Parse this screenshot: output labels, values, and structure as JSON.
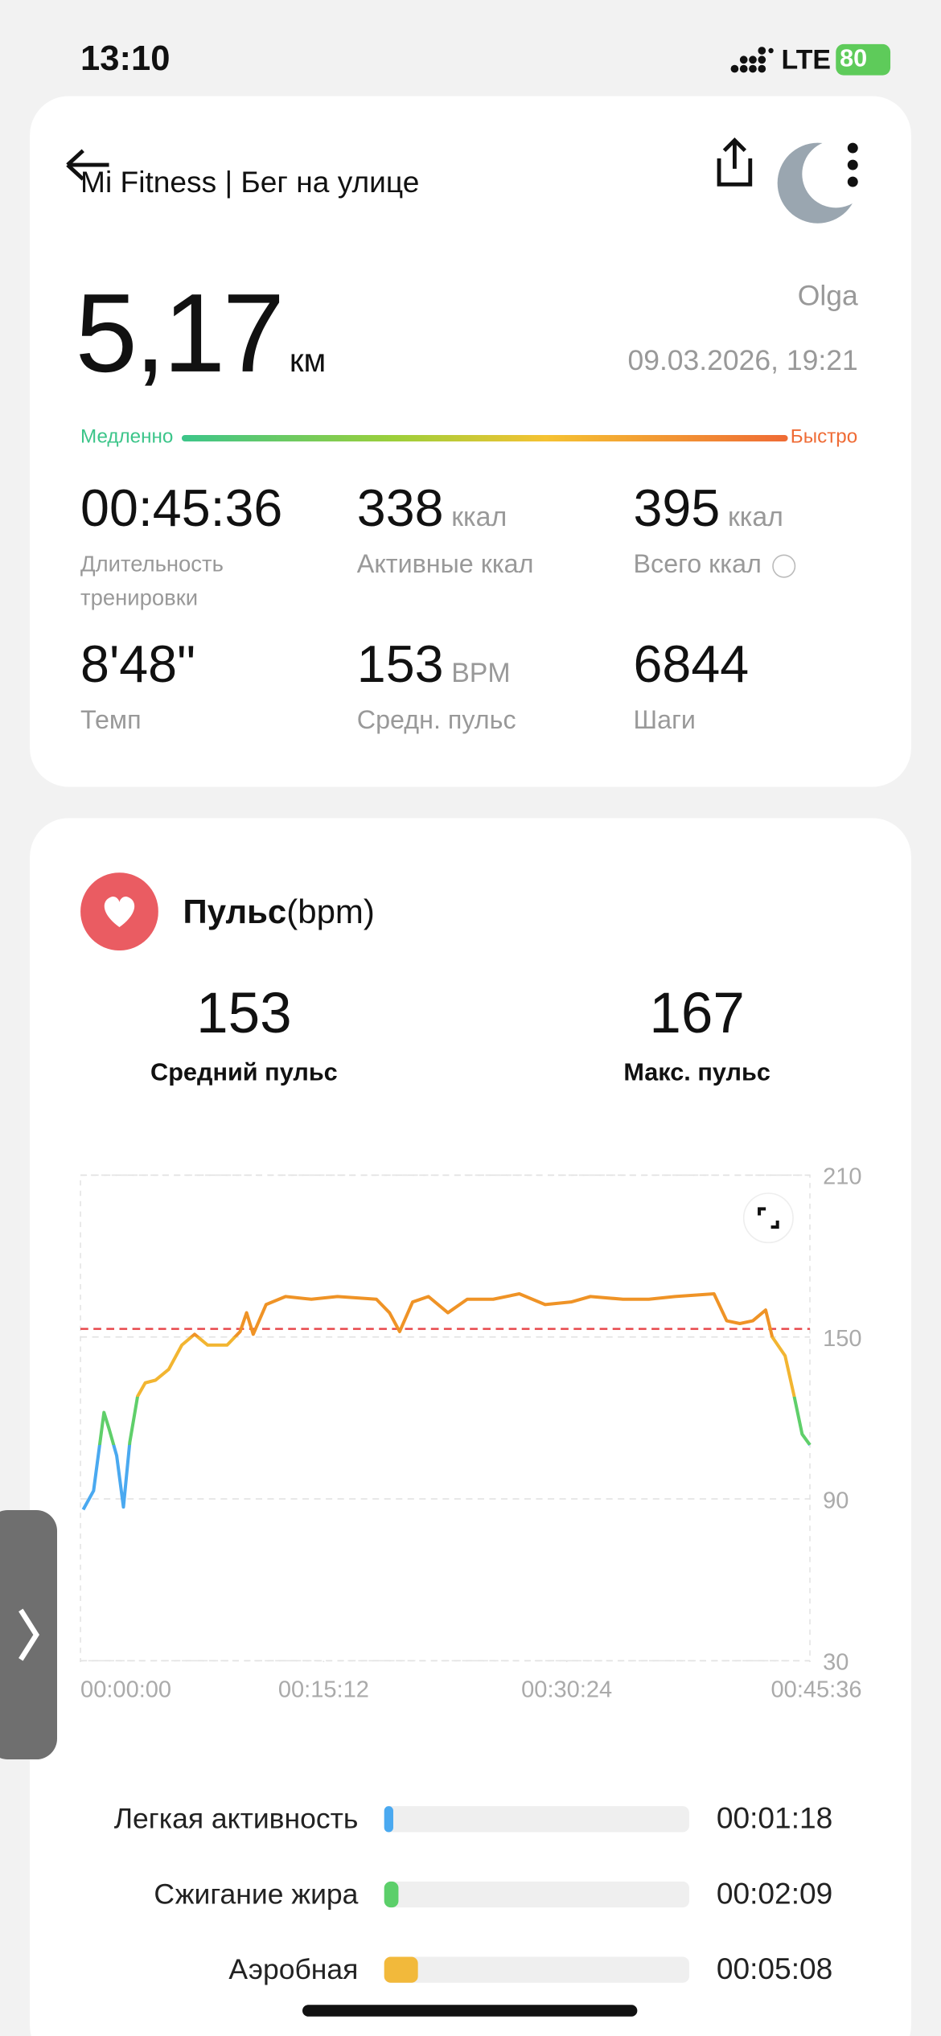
{
  "status_bar": {
    "time": "13:10",
    "network": "LTE",
    "battery": "80"
  },
  "header": {
    "title": "Mi Fitness | Бег на улице"
  },
  "summary": {
    "distance": "5,17",
    "unit": "км",
    "user": "Olga",
    "datetime": "09.03.2026, 19:21",
    "slow": "Медленно",
    "fast": "Быстро"
  },
  "stats": [
    {
      "value": "00:45:36",
      "label": "Длительность тренировки"
    },
    {
      "value": "338",
      "unit": "ккал",
      "label": "Активные ккал"
    },
    {
      "value": "395",
      "unit": "ккал",
      "label": "Всего ккал"
    },
    {
      "value": "8'48\"",
      "label": "Темп"
    },
    {
      "value": "153",
      "unit": "BPM",
      "label": "Средн. пульс"
    },
    {
      "value": "6844",
      "label": "Шаги"
    }
  ],
  "pulse": {
    "title": "Пульс",
    "unit": "(bpm)",
    "avg": {
      "value": 153,
      "label": "Средний пульс"
    },
    "max": {
      "value": 167,
      "label": "Макс. пульс"
    }
  },
  "chart_data": {
    "type": "line",
    "x": [
      10,
      49,
      88,
      107,
      136,
      161,
      185,
      214,
      243,
      282,
      331,
      380,
      428,
      477,
      550,
      599,
      623,
      648,
      696,
      769,
      866,
      964,
      1110,
      1159,
      1197,
      1246,
      1305,
      1378,
      1451,
      1548,
      1646,
      1743,
      1840,
      1913,
      2035,
      2132,
      2230,
      2376,
      2424,
      2473,
      2522,
      2570,
      2595,
      2643,
      2677,
      2707,
      2736
    ],
    "series": [
      {
        "color": "#ef9326",
        "values": [
          86,
          93,
          122,
          116,
          106,
          87,
          111,
          128,
          133,
          134,
          138,
          147,
          151,
          147,
          147,
          152,
          159,
          151,
          162,
          165,
          164,
          165,
          164,
          159,
          152,
          163,
          165,
          159,
          164,
          164,
          166,
          162,
          163,
          165,
          164,
          164,
          165,
          166,
          156,
          155,
          156,
          160,
          150,
          143,
          128,
          114,
          110
        ]
      }
    ],
    "xlim": [
      0,
      2736
    ],
    "xticks": [
      {
        "value": 0,
        "label": "00:00:00"
      },
      {
        "value": 912,
        "label": "00:15:12"
      },
      {
        "value": 1824,
        "label": "00:30:24"
      },
      {
        "value": 2736,
        "label": "00:45:36"
      }
    ],
    "ylim": [
      30,
      210
    ],
    "yticks": [
      30,
      90,
      150,
      210
    ],
    "grid": true
  },
  "zones": [
    {
      "label": "Легкая активность",
      "time": "00:01:18",
      "color": "#4aa9f0"
    },
    {
      "label": "Сжигание жира",
      "time": "00:02:09",
      "color": "#5ccf6a"
    },
    {
      "label": "Аэробная",
      "time": "00:05:08",
      "color": "#f2b93b"
    }
  ]
}
